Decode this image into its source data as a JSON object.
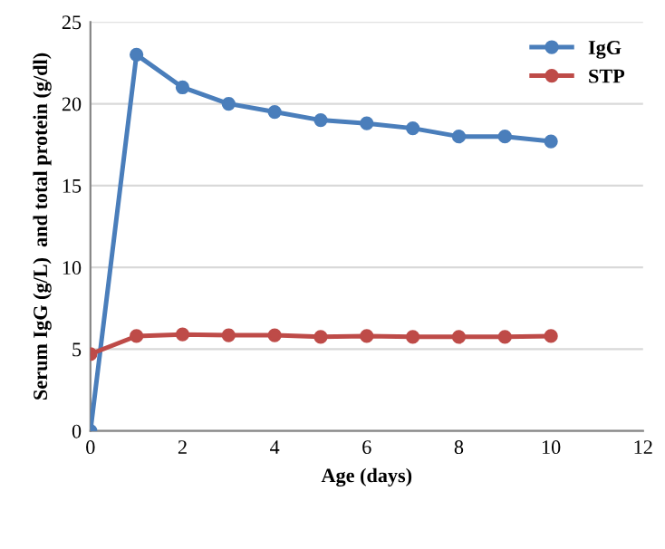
{
  "chart_data": {
    "type": "line",
    "xlabel": "Age (days)",
    "ylabel": "Serum IgG (g/L)  and total protein (g/dl)",
    "x": [
      0,
      1,
      2,
      3,
      4,
      5,
      6,
      7,
      8,
      9,
      10
    ],
    "series": [
      {
        "name": "IgG",
        "color": "#4a7ebb",
        "values": [
          0,
          23,
          21,
          20,
          19.5,
          19,
          18.8,
          18.5,
          18,
          18,
          17.7
        ]
      },
      {
        "name": "STP",
        "color": "#be4b48",
        "values": [
          4.7,
          5.8,
          5.9,
          5.85,
          5.85,
          5.75,
          5.8,
          5.75,
          5.75,
          5.75,
          5.8
        ]
      }
    ],
    "xlim": [
      0,
      12
    ],
    "xticks": [
      0,
      2,
      4,
      6,
      8,
      10,
      12
    ],
    "ylim": [
      0,
      25
    ],
    "yticks": [
      0,
      5,
      10,
      15,
      20,
      25
    ],
    "grid": "y",
    "legend": "top right",
    "marker": "circle",
    "line_style": "solid"
  }
}
